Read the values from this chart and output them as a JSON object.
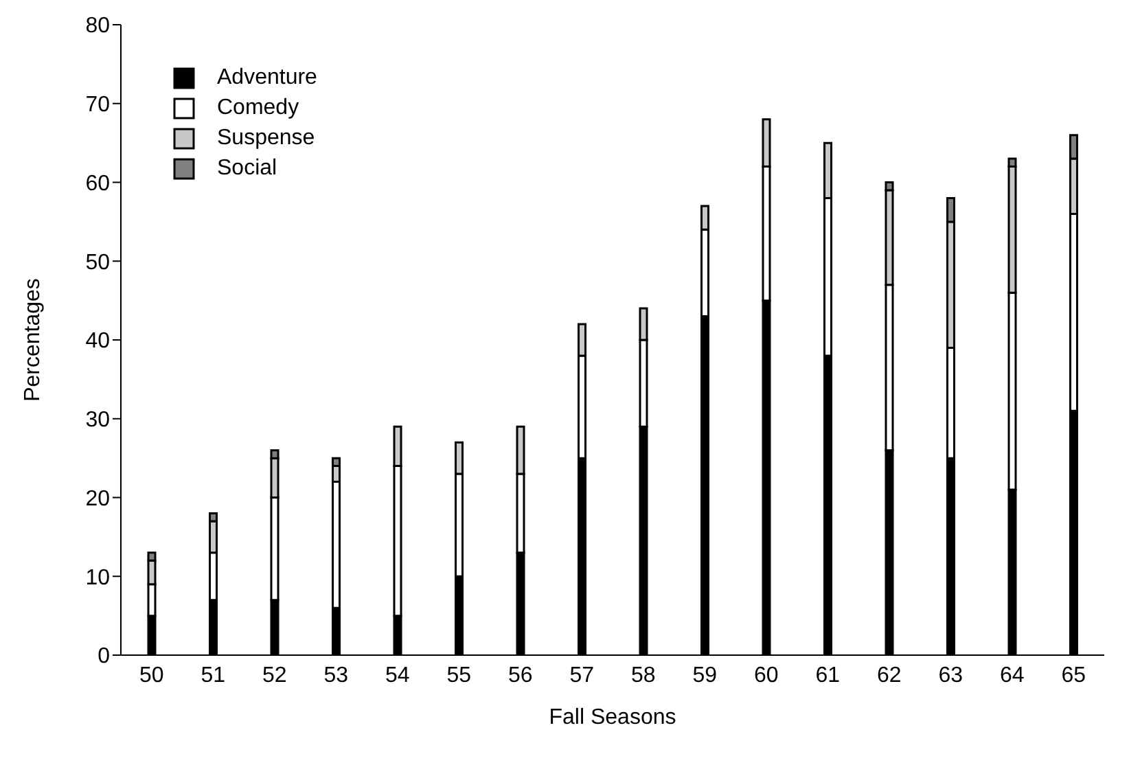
{
  "chart_data": {
    "type": "bar",
    "stacked": true,
    "xlabel": "Fall Seasons",
    "ylabel": "Percentages",
    "categories": [
      "50",
      "51",
      "52",
      "53",
      "54",
      "55",
      "56",
      "57",
      "58",
      "59",
      "60",
      "61",
      "62",
      "63",
      "64",
      "65"
    ],
    "series": [
      {
        "name": "Adventure",
        "color": "#000000",
        "values": [
          5,
          7,
          7,
          6,
          5,
          10,
          13,
          25,
          29,
          43,
          45,
          38,
          26,
          25,
          21,
          31
        ]
      },
      {
        "name": "Comedy",
        "color": "#ffffff",
        "values": [
          4,
          6,
          13,
          16,
          19,
          13,
          10,
          13,
          11,
          11,
          17,
          20,
          21,
          14,
          25,
          25
        ]
      },
      {
        "name": "Suspense",
        "color": "#c8c8c8",
        "values": [
          3,
          4,
          5,
          2,
          5,
          4,
          6,
          4,
          4,
          3,
          6,
          7,
          12,
          16,
          16,
          7
        ]
      },
      {
        "name": "Social",
        "color": "#808080",
        "values": [
          1,
          1,
          1,
          1,
          0,
          0,
          0,
          0,
          0,
          0,
          0,
          0,
          1,
          3,
          1,
          3
        ]
      }
    ],
    "ylim": [
      0,
      80
    ],
    "yticks": [
      0,
      10,
      20,
      30,
      40,
      50,
      60,
      70,
      80
    ],
    "grid": false,
    "legend": "top left"
  }
}
